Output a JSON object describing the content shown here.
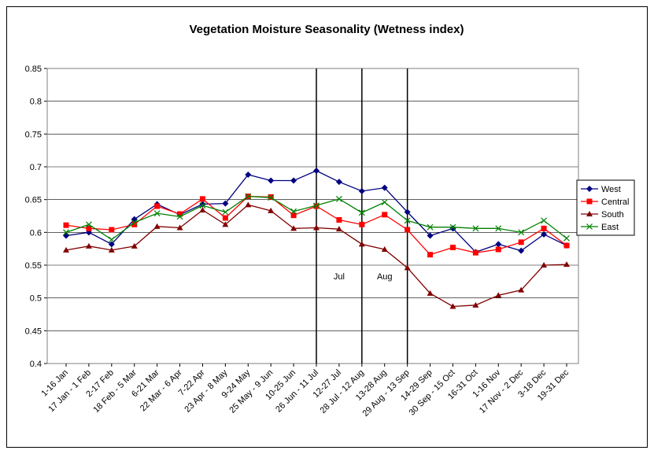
{
  "chart_data": {
    "type": "line",
    "title": "Vegetation Moisture Seasonality (Wetness index)",
    "categories": [
      "1-16 Jan",
      "17 Jan - 1 Feb",
      "2-17 Feb",
      "18 Feb - 5 Mar",
      "6-21 Mar",
      "22 Mar - 6 Apr",
      "7-22 Apr",
      "23 Apr - 8 May",
      "9-24 May",
      "25 May - 9 Jun",
      "10-25 Jun",
      "26 Jun - 11 Jul",
      "12-27 Jul",
      "28 Jul - 12 Aug",
      "13-28 Aug",
      "29 Aug - 13 Sep",
      "14-29 Sep",
      "30 Sep - 15 Oct",
      "16-31 Oct",
      "1-16 Nov",
      "17 Nov - 2 Dec",
      "3-18 Dec",
      "19-31 Dec"
    ],
    "series": [
      {
        "name": "West",
        "color": "#000080",
        "marker": "diamond",
        "values": [
          0.595,
          0.6,
          0.582,
          0.62,
          0.643,
          0.627,
          0.643,
          0.644,
          0.688,
          0.679,
          0.679,
          0.694,
          0.677,
          0.663,
          0.668,
          0.631,
          0.595,
          0.606,
          0.57,
          0.582,
          0.572,
          0.597,
          0.58
        ]
      },
      {
        "name": "Central",
        "color": "#ff0000",
        "marker": "square",
        "values": [
          0.611,
          0.606,
          0.604,
          0.612,
          0.64,
          0.628,
          0.651,
          0.622,
          0.655,
          0.654,
          0.626,
          0.64,
          0.619,
          0.612,
          0.627,
          0.604,
          0.566,
          0.577,
          0.569,
          0.574,
          0.585,
          0.606,
          0.58
        ]
      },
      {
        "name": "South",
        "color": "#800000",
        "marker": "triangle",
        "values": [
          0.573,
          0.579,
          0.573,
          0.579,
          0.609,
          0.607,
          0.634,
          0.612,
          0.642,
          0.633,
          0.606,
          0.607,
          0.605,
          0.582,
          0.574,
          0.546,
          0.507,
          0.487,
          0.489,
          0.504,
          0.512,
          0.55,
          0.551
        ]
      },
      {
        "name": "East",
        "color": "#008000",
        "marker": "x",
        "values": [
          0.6,
          0.612,
          0.589,
          0.615,
          0.629,
          0.624,
          0.641,
          0.631,
          0.655,
          0.653,
          0.632,
          0.641,
          0.651,
          0.63,
          0.646,
          0.618,
          0.608,
          0.608,
          0.606,
          0.606,
          0.6,
          0.618,
          0.591
        ]
      }
    ],
    "vlines": [
      "26 Jun - 11 Jul",
      "28 Jul - 12 Aug",
      "29 Aug - 13 Sep"
    ],
    "annotations": [
      "Jul",
      "Aug"
    ],
    "ylim": [
      0.4,
      0.85
    ],
    "yticks": [
      0.4,
      0.45,
      0.5,
      0.55,
      0.6,
      0.65,
      0.7,
      0.75,
      0.8,
      0.85
    ],
    "grid": true,
    "legend": "right"
  }
}
